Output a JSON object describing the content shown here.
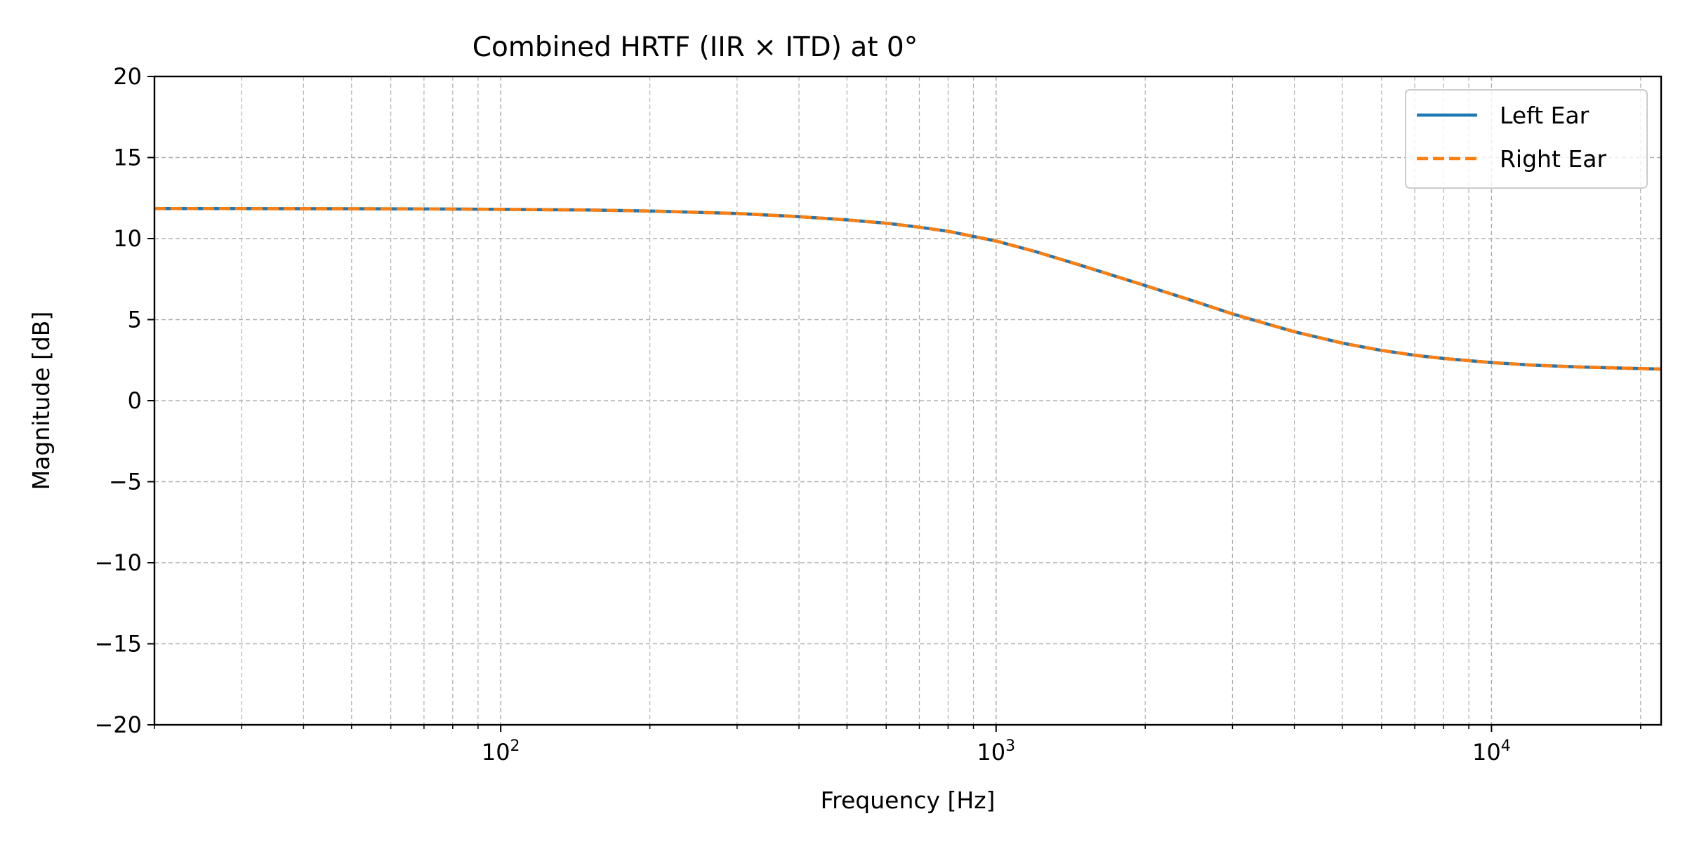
{
  "chart_data": {
    "type": "line",
    "title": "Combined HRTF (IIR × ITD) at 0°",
    "xlabel": "Frequency [Hz]",
    "ylabel": "Magnitude [dB]",
    "xscale": "log",
    "xlim": [
      20,
      22000
    ],
    "ylim": [
      -20,
      20
    ],
    "grid": true,
    "grid_minor": true,
    "legend_position": "top-right",
    "xticks": [
      {
        "base": "10",
        "exp": "2",
        "value": 100
      },
      {
        "base": "10",
        "exp": "3",
        "value": 1000
      },
      {
        "base": "10",
        "exp": "4",
        "value": 10000
      }
    ],
    "yticks": [
      {
        "value": 20,
        "label": "20"
      },
      {
        "value": 15,
        "label": "15"
      },
      {
        "value": 10,
        "label": "10"
      },
      {
        "value": 5,
        "label": "5"
      },
      {
        "value": 0,
        "label": "0"
      },
      {
        "value": -5,
        "label": "−5"
      },
      {
        "value": -10,
        "label": "−10"
      },
      {
        "value": -15,
        "label": "−15"
      },
      {
        "value": -20,
        "label": "−20"
      }
    ],
    "x": [
      20,
      30,
      50,
      70,
      100,
      150,
      200,
      300,
      400,
      500,
      600,
      700,
      800,
      1000,
      1200,
      1500,
      2000,
      2500,
      3000,
      4000,
      5000,
      6000,
      7000,
      8000,
      10000,
      12000,
      15000,
      20000,
      22000
    ],
    "series": [
      {
        "name": "Left Ear",
        "color": "#1f77b4",
        "style": "solid",
        "values": [
          11.85,
          11.85,
          11.84,
          11.83,
          11.8,
          11.76,
          11.7,
          11.55,
          11.35,
          11.15,
          10.95,
          10.7,
          10.45,
          9.85,
          9.2,
          8.3,
          7.1,
          6.15,
          5.35,
          4.25,
          3.55,
          3.1,
          2.8,
          2.6,
          2.35,
          2.2,
          2.08,
          1.98,
          1.95
        ]
      },
      {
        "name": "Right Ear",
        "color": "#ff7f0e",
        "style": "dashed",
        "values": [
          11.85,
          11.85,
          11.84,
          11.83,
          11.8,
          11.76,
          11.7,
          11.55,
          11.35,
          11.15,
          10.95,
          10.7,
          10.45,
          9.85,
          9.2,
          8.3,
          7.1,
          6.15,
          5.35,
          4.25,
          3.55,
          3.1,
          2.8,
          2.6,
          2.35,
          2.2,
          2.08,
          1.98,
          1.95
        ]
      }
    ]
  }
}
